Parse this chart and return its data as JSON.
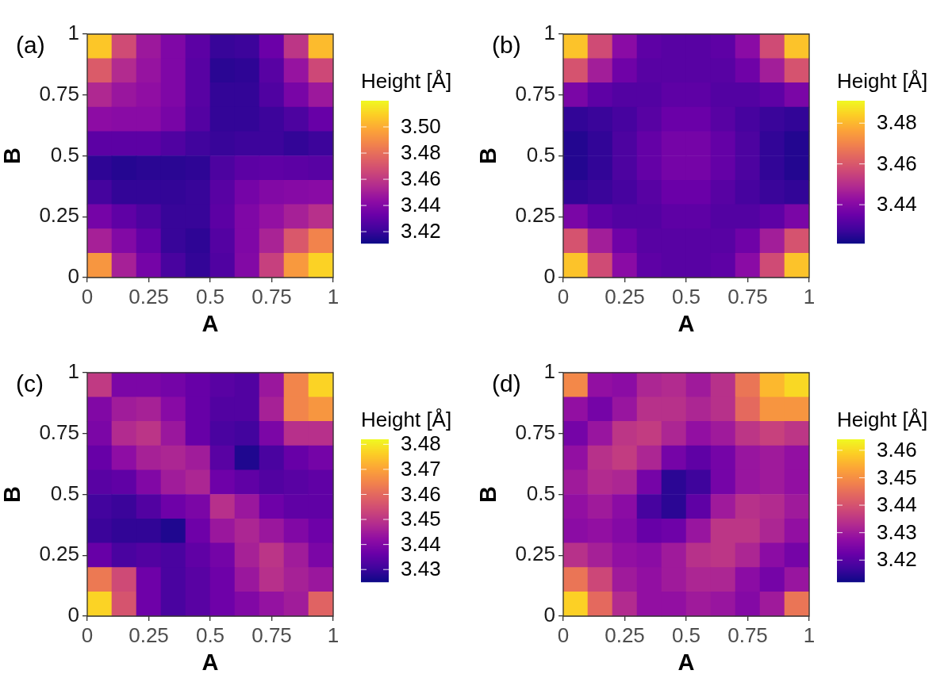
{
  "chart_data": [
    {
      "type": "heatmap",
      "title": "(a)",
      "xlabel": "A",
      "ylabel": "B",
      "clabel": "Height [Å]",
      "x": [
        0.05,
        0.15,
        0.25,
        0.35,
        0.45,
        0.55,
        0.65,
        0.75,
        0.85,
        0.95
      ],
      "xlim": [
        0,
        1
      ],
      "xticks": [
        0,
        0.25,
        0.5,
        0.75,
        1
      ],
      "ylim": [
        0,
        1
      ],
      "yticks": [
        0,
        0.25,
        0.5,
        0.75,
        1
      ],
      "clim": [
        3.411,
        3.52
      ],
      "cticks": [
        3.42,
        3.44,
        3.46,
        3.48,
        {
          "value": 3.5,
          "label": "3.50"
        }
      ],
      "cells": [
        [
          3.507,
          3.467,
          3.448,
          3.439,
          3.429,
          3.42,
          3.421,
          3.433,
          3.459,
          3.504
        ],
        [
          3.473,
          3.455,
          3.446,
          3.439,
          3.428,
          3.417,
          3.418,
          3.428,
          3.446,
          3.466
        ],
        [
          3.454,
          3.447,
          3.444,
          3.439,
          3.428,
          3.419,
          3.419,
          3.426,
          3.437,
          3.448
        ],
        [
          3.443,
          3.442,
          3.442,
          3.437,
          3.427,
          3.419,
          3.419,
          3.421,
          3.425,
          3.432
        ],
        [
          3.429,
          3.429,
          3.429,
          3.426,
          3.422,
          3.42,
          3.421,
          3.421,
          3.419,
          3.421
        ],
        [
          3.418,
          3.416,
          3.417,
          3.417,
          3.418,
          3.425,
          3.429,
          3.43,
          3.429,
          3.428
        ],
        [
          3.423,
          3.419,
          3.419,
          3.419,
          3.42,
          3.428,
          3.436,
          3.44,
          3.441,
          3.442
        ],
        [
          3.436,
          3.43,
          3.425,
          3.42,
          3.42,
          3.429,
          3.439,
          3.445,
          3.451,
          3.457
        ],
        [
          3.451,
          3.44,
          3.431,
          3.42,
          3.418,
          3.427,
          3.439,
          3.452,
          3.472,
          3.487
        ],
        [
          3.493,
          3.451,
          3.436,
          3.424,
          3.419,
          3.426,
          3.44,
          3.463,
          3.494,
          3.51
        ]
      ]
    },
    {
      "type": "heatmap",
      "title": "(b)",
      "xlabel": "A",
      "ylabel": "B",
      "clabel": "Height [Å]",
      "x": [
        0.05,
        0.15,
        0.25,
        0.35,
        0.45,
        0.55,
        0.65,
        0.75,
        0.85,
        0.95
      ],
      "xlim": [
        0,
        1
      ],
      "xticks": [
        0,
        0.25,
        0.5,
        0.75,
        1
      ],
      "ylim": [
        0,
        1
      ],
      "yticks": [
        0,
        0.25,
        0.5,
        0.75,
        1
      ],
      "clim": [
        3.421,
        3.491
      ],
      "cticks": [
        3.44,
        3.46,
        3.48
      ],
      "cells": [
        [
          3.482,
          3.457,
          3.441,
          3.433,
          3.432,
          3.432,
          3.433,
          3.441,
          3.457,
          3.482
        ],
        [
          3.459,
          3.446,
          3.436,
          3.432,
          3.432,
          3.432,
          3.432,
          3.436,
          3.446,
          3.459
        ],
        [
          3.438,
          3.433,
          3.431,
          3.431,
          3.433,
          3.433,
          3.431,
          3.431,
          3.433,
          3.438
        ],
        [
          3.426,
          3.427,
          3.429,
          3.432,
          3.435,
          3.435,
          3.432,
          3.429,
          3.427,
          3.426
        ],
        [
          3.424,
          3.426,
          3.43,
          3.434,
          3.437,
          3.437,
          3.434,
          3.43,
          3.426,
          3.424
        ],
        [
          3.424,
          3.426,
          3.43,
          3.434,
          3.437,
          3.437,
          3.434,
          3.43,
          3.426,
          3.424
        ],
        [
          3.426,
          3.427,
          3.429,
          3.432,
          3.435,
          3.435,
          3.432,
          3.429,
          3.427,
          3.426
        ],
        [
          3.438,
          3.433,
          3.431,
          3.431,
          3.433,
          3.433,
          3.431,
          3.431,
          3.433,
          3.438
        ],
        [
          3.459,
          3.446,
          3.436,
          3.432,
          3.432,
          3.432,
          3.432,
          3.436,
          3.446,
          3.459
        ],
        [
          3.482,
          3.457,
          3.441,
          3.433,
          3.432,
          3.432,
          3.433,
          3.441,
          3.457,
          3.482
        ]
      ]
    },
    {
      "type": "heatmap",
      "title": "(c)",
      "xlabel": "A",
      "ylabel": "B",
      "clabel": "Height [Å]",
      "x": [
        0.05,
        0.15,
        0.25,
        0.35,
        0.45,
        0.55,
        0.65,
        0.75,
        0.85,
        0.95
      ],
      "xlim": [
        0,
        1
      ],
      "xticks": [
        0,
        0.25,
        0.5,
        0.75,
        1
      ],
      "ylim": [
        0,
        1
      ],
      "yticks": [
        0,
        0.25,
        0.5,
        0.75,
        1
      ],
      "clim": [
        3.425,
        3.482
      ],
      "cticks": [
        3.43,
        3.44,
        3.45,
        3.46,
        3.47,
        3.48
      ],
      "cells": [
        [
          3.451,
          3.439,
          3.439,
          3.438,
          3.436,
          3.434,
          3.433,
          3.444,
          3.465,
          3.477
        ],
        [
          3.44,
          3.445,
          3.446,
          3.441,
          3.436,
          3.433,
          3.433,
          3.446,
          3.465,
          3.468
        ],
        [
          3.439,
          3.448,
          3.45,
          3.444,
          3.436,
          3.432,
          3.431,
          3.439,
          3.449,
          3.449
        ],
        [
          3.436,
          3.442,
          3.446,
          3.447,
          3.445,
          3.434,
          3.427,
          3.432,
          3.436,
          3.438
        ],
        [
          3.434,
          3.435,
          3.44,
          3.445,
          3.447,
          3.437,
          3.435,
          3.433,
          3.434,
          3.435
        ],
        [
          3.431,
          3.43,
          3.433,
          3.437,
          3.439,
          3.449,
          3.444,
          3.437,
          3.435,
          3.435
        ],
        [
          3.43,
          3.429,
          3.429,
          3.427,
          3.437,
          3.444,
          3.447,
          3.444,
          3.44,
          3.437
        ],
        [
          3.436,
          3.432,
          3.433,
          3.432,
          3.435,
          3.438,
          3.446,
          3.45,
          3.445,
          3.439
        ],
        [
          3.463,
          3.454,
          3.437,
          3.432,
          3.434,
          3.437,
          3.444,
          3.449,
          3.446,
          3.444
        ],
        [
          3.477,
          3.456,
          3.437,
          3.432,
          3.434,
          3.437,
          3.44,
          3.443,
          3.445,
          3.459
        ]
      ]
    },
    {
      "type": "heatmap",
      "title": "(d)",
      "xlabel": "A",
      "ylabel": "B",
      "clabel": "Height [Å]",
      "x": [
        0.05,
        0.15,
        0.25,
        0.35,
        0.45,
        0.55,
        0.65,
        0.75,
        0.85,
        0.95
      ],
      "xlim": [
        0,
        1
      ],
      "xticks": [
        0,
        0.25,
        0.5,
        0.75,
        1
      ],
      "ylim": [
        0,
        1
      ],
      "yticks": [
        0,
        0.25,
        0.5,
        0.75,
        1
      ],
      "clim": [
        3.412,
        3.464
      ],
      "cticks": [
        3.42,
        3.43,
        3.44,
        3.45,
        3.46
      ],
      "cells": [
        [
          3.449,
          3.428,
          3.427,
          3.432,
          3.433,
          3.43,
          3.434,
          3.446,
          3.456,
          3.46
        ],
        [
          3.428,
          3.424,
          3.429,
          3.434,
          3.434,
          3.432,
          3.434,
          3.444,
          3.451,
          3.451
        ],
        [
          3.424,
          3.429,
          3.435,
          3.436,
          3.432,
          3.428,
          3.43,
          3.435,
          3.437,
          3.435
        ],
        [
          3.428,
          3.434,
          3.436,
          3.432,
          3.424,
          3.421,
          3.424,
          3.429,
          3.43,
          3.428
        ],
        [
          3.43,
          3.433,
          3.432,
          3.424,
          3.415,
          3.417,
          3.424,
          3.429,
          3.43,
          3.428
        ],
        [
          3.428,
          3.43,
          3.427,
          3.418,
          3.415,
          3.421,
          3.43,
          3.434,
          3.433,
          3.43
        ],
        [
          3.427,
          3.428,
          3.426,
          3.422,
          3.423,
          3.429,
          3.435,
          3.435,
          3.432,
          3.428
        ],
        [
          3.434,
          3.431,
          3.428,
          3.427,
          3.43,
          3.434,
          3.435,
          3.432,
          3.427,
          3.424
        ],
        [
          3.446,
          3.438,
          3.43,
          3.428,
          3.43,
          3.432,
          3.432,
          3.427,
          3.424,
          3.429
        ],
        [
          3.459,
          3.444,
          3.433,
          3.428,
          3.428,
          3.43,
          3.429,
          3.426,
          3.43,
          3.446
        ]
      ]
    }
  ]
}
